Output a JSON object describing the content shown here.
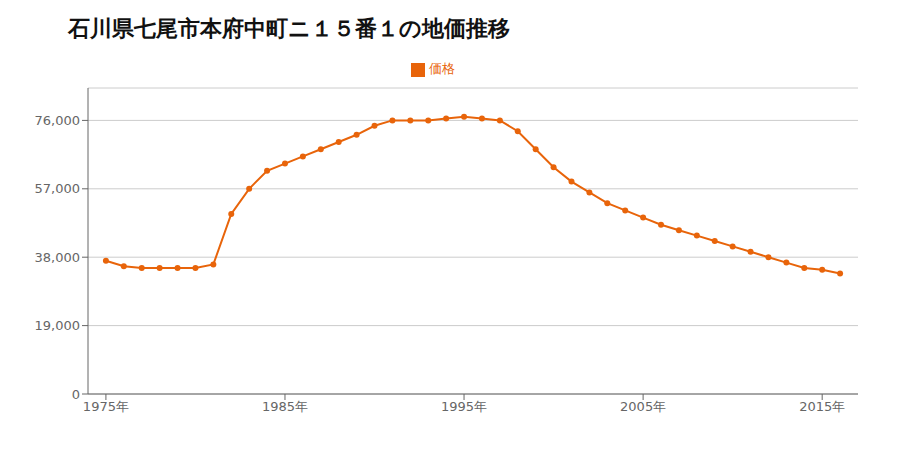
{
  "chart_data": {
    "type": "line",
    "title": "石川県七尾市本府中町ニ１５番１の地価推移",
    "x": [
      1975,
      1976,
      1977,
      1978,
      1979,
      1980,
      1981,
      1982,
      1983,
      1984,
      1985,
      1986,
      1987,
      1988,
      1989,
      1990,
      1991,
      1992,
      1993,
      1994,
      1995,
      1996,
      1997,
      1998,
      1999,
      2000,
      2001,
      2002,
      2003,
      2004,
      2005,
      2006,
      2007,
      2008,
      2009,
      2010,
      2011,
      2012,
      2013,
      2014,
      2015,
      2016
    ],
    "series": [
      {
        "name": "価格",
        "color": "#e8640a",
        "marker": "circle",
        "values": [
          37000,
          35500,
          35000,
          35000,
          35000,
          35000,
          36000,
          50000,
          57000,
          62000,
          64000,
          66000,
          68000,
          70000,
          72000,
          74500,
          76000,
          76000,
          76000,
          76500,
          77000,
          76500,
          76000,
          73000,
          68000,
          63000,
          59000,
          56000,
          53000,
          51000,
          49000,
          47000,
          45500,
          44000,
          42500,
          41000,
          39500,
          38000,
          36500,
          35000,
          34500,
          33500
        ]
      }
    ],
    "xlim": [
      1974,
      2017
    ],
    "ylim": [
      0,
      85000
    ],
    "xticks": [
      {
        "value": 1975,
        "label": "1975年"
      },
      {
        "value": 1985,
        "label": "1985年"
      },
      {
        "value": 1995,
        "label": "1995年"
      },
      {
        "value": 2005,
        "label": "2005年"
      },
      {
        "value": 2015,
        "label": "2015年"
      }
    ],
    "yticks": [
      0,
      {
        "value": 19000,
        "label": "19,000"
      },
      {
        "value": 38000,
        "label": "38,000"
      },
      {
        "value": 57000,
        "label": "57,000"
      },
      {
        "value": 76000,
        "label": "76,000"
      }
    ],
    "grid": true,
    "legend": "top"
  }
}
